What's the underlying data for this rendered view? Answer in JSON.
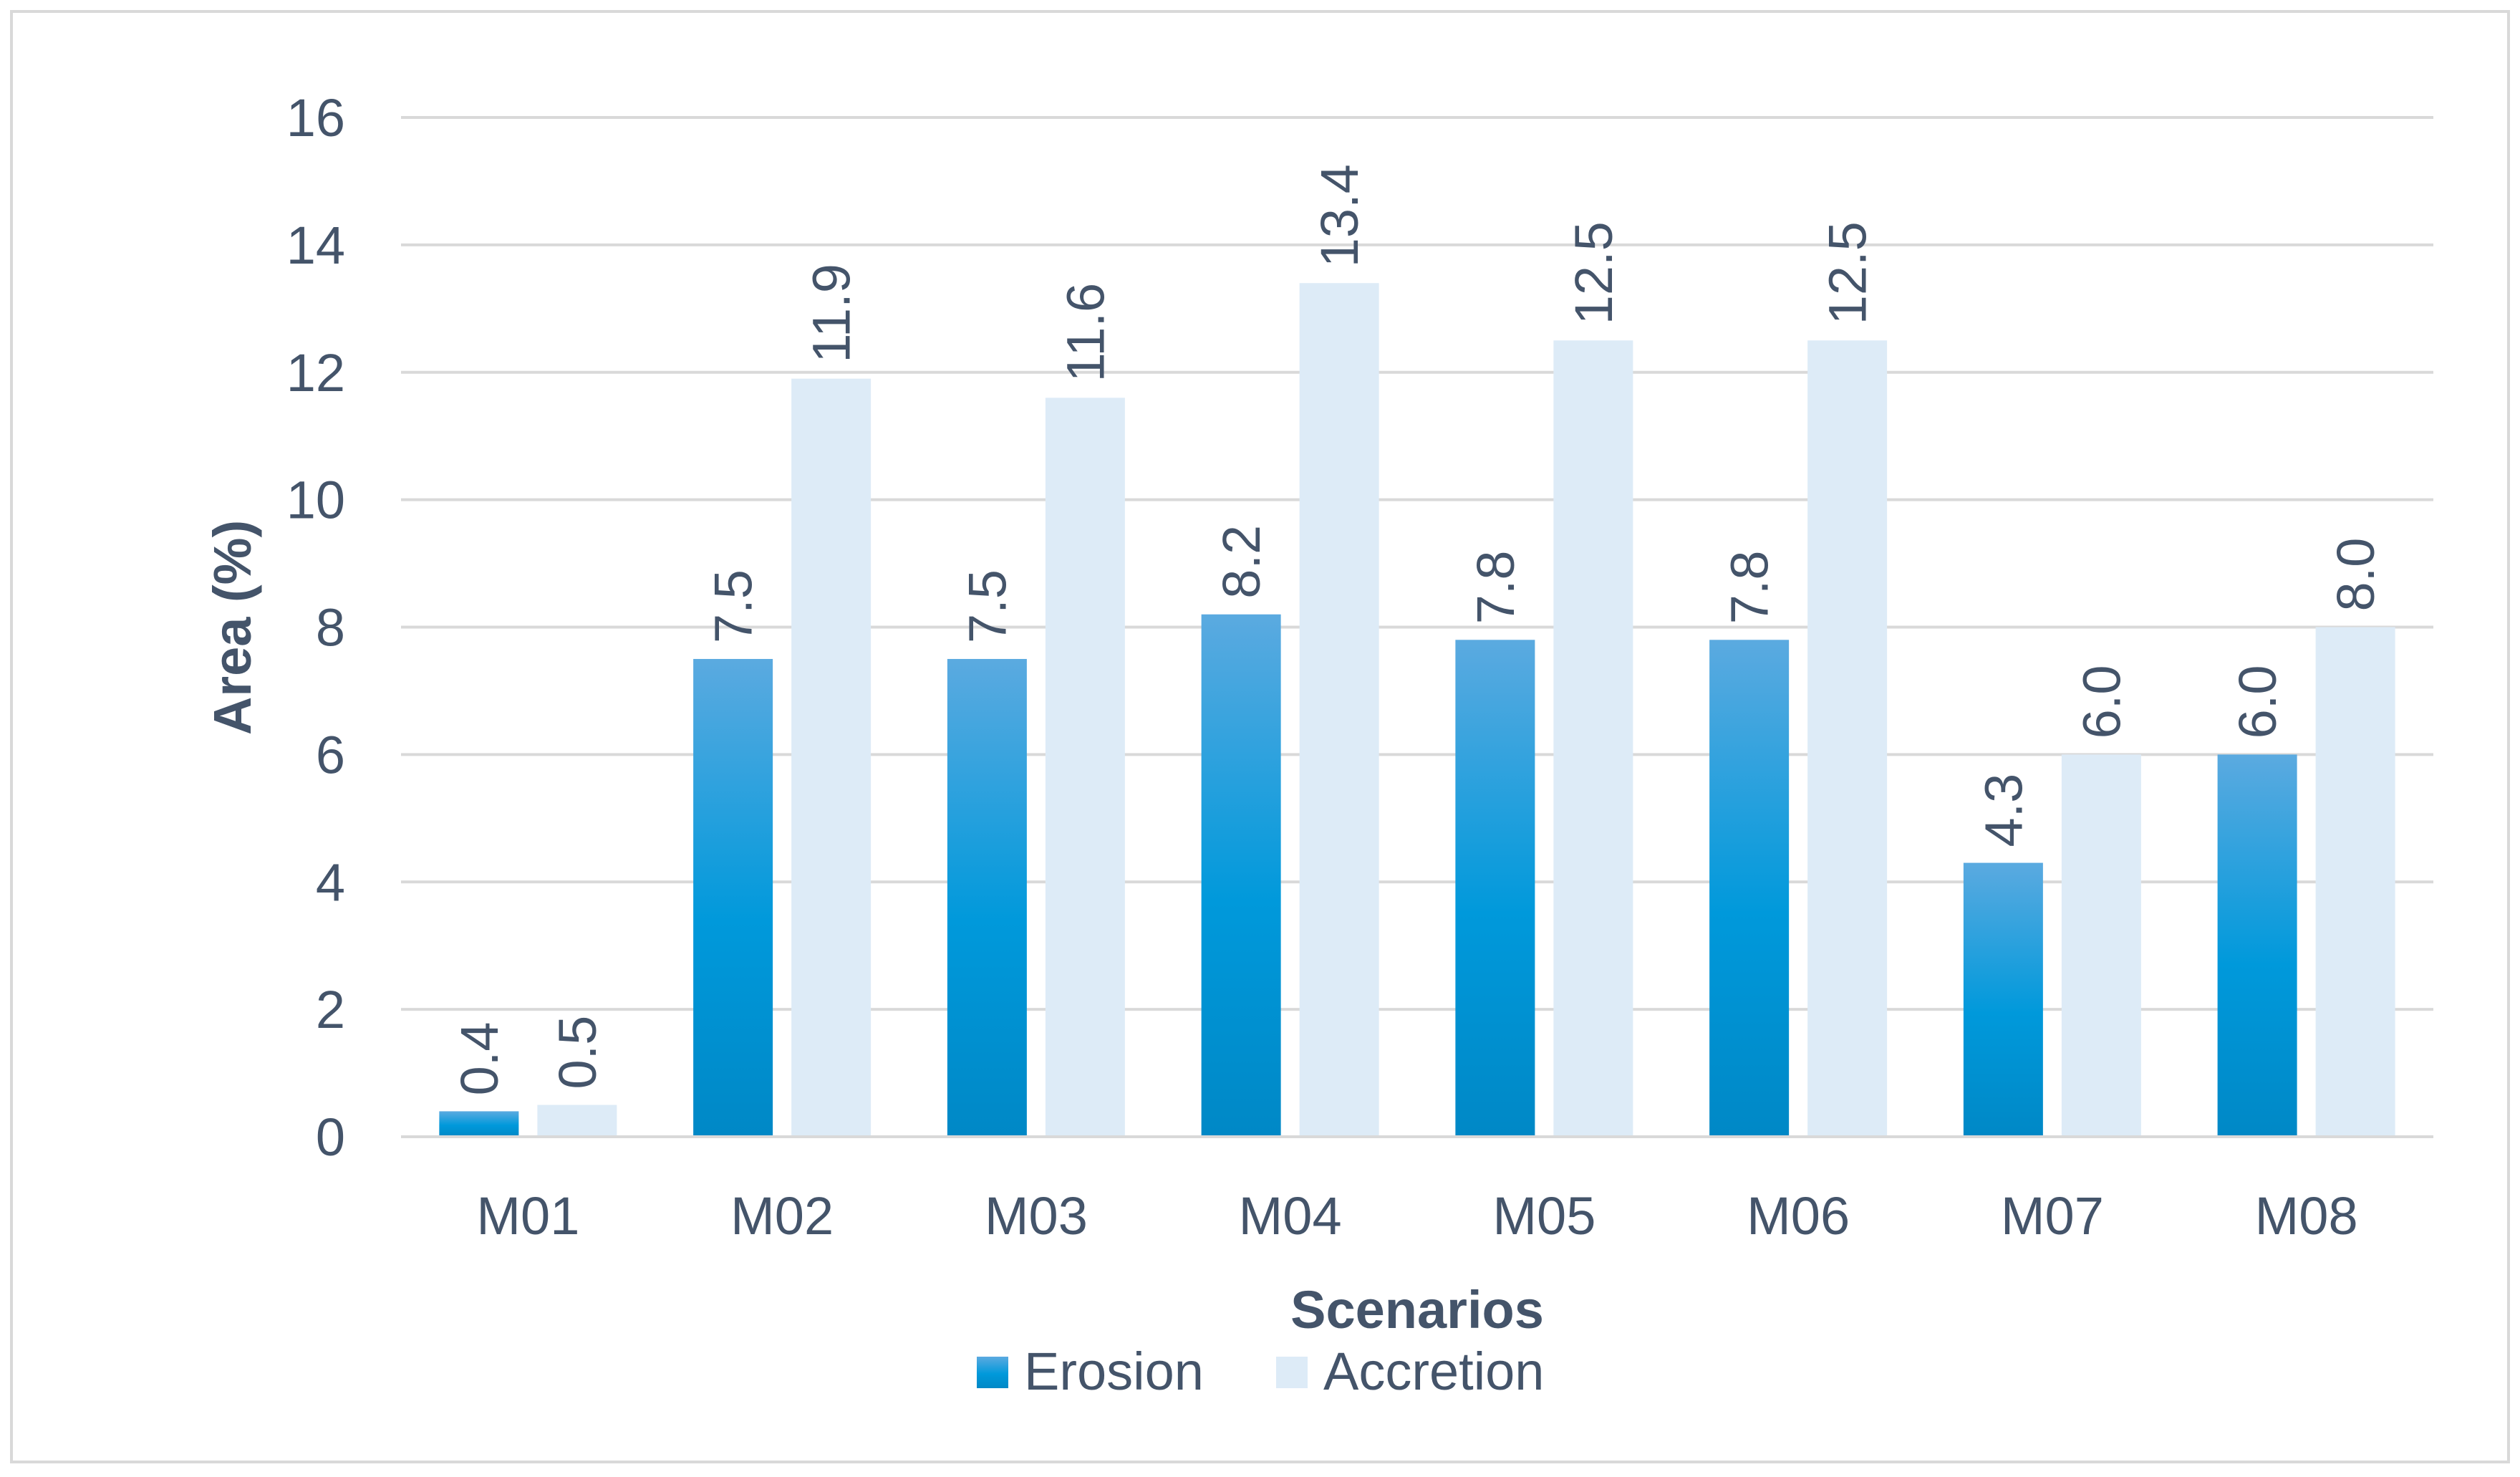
{
  "chart_data": {
    "type": "bar",
    "title": "",
    "xlabel": "Scenarios",
    "ylabel": "Area (%)",
    "ylim": [
      0,
      16
    ],
    "yticks": [
      0,
      2,
      4,
      6,
      8,
      10,
      12,
      14,
      16
    ],
    "ytick_labels": [
      "0",
      "2",
      "4",
      "6",
      "8",
      "10",
      "12",
      "14",
      "16"
    ],
    "grid": true,
    "legend_position": "bottom",
    "categories": [
      "M01",
      "M02",
      "M03",
      "M04",
      "M05",
      "M06",
      "M07",
      "M08"
    ],
    "series": [
      {
        "name": "Erosion",
        "values": [
          0.4,
          7.5,
          7.5,
          8.2,
          7.8,
          7.8,
          4.3,
          6.0
        ],
        "labels": [
          "0.4",
          "7.5",
          "7.5",
          "8.2",
          "7.8",
          "7.8",
          "4.3",
          "6.0"
        ],
        "color": "#0099DB"
      },
      {
        "name": "Accretion",
        "values": [
          0.5,
          11.9,
          11.6,
          13.4,
          12.5,
          12.5,
          6.0,
          8.0
        ],
        "labels": [
          "0.5",
          "11.9",
          "11.6",
          "13.4",
          "12.5",
          "12.5",
          "6.0",
          "8.0"
        ],
        "color": "#DDEBF7"
      }
    ]
  },
  "colors": {
    "text": "#44546A",
    "grid": "#D9D9D9",
    "axis": "#D9D9D9",
    "frame": "#D9D9D9",
    "erosion_light": "#5BAAE0",
    "erosion_mid": "#0099DB",
    "erosion_dark": "#0088C6"
  }
}
